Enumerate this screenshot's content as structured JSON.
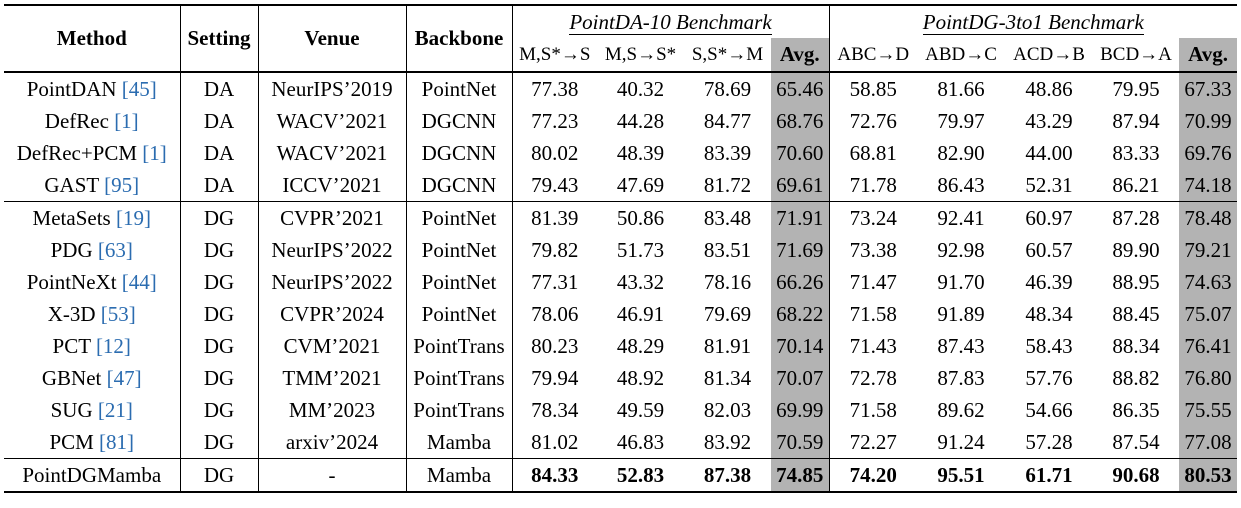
{
  "headers": {
    "method": "Method",
    "setting": "Setting",
    "venue": "Venue",
    "backbone": "Backbone",
    "benchmark1": "PointDA-10 Benchmark",
    "benchmark2": "PointDG-3to1 Benchmark",
    "sub": [
      "M,S*→S",
      "M,S→S*",
      "S,S*→M",
      "Avg.",
      "ABC→D",
      "ABD→C",
      "ACD→B",
      "BCD→A",
      "Avg."
    ]
  },
  "rows": [
    {
      "method": "PointDAN",
      "ref": "[45]",
      "setting": "DA",
      "venue": "NeurIPS’2019",
      "backbone": "PointNet",
      "vals": [
        "77.38",
        "40.32",
        "78.69",
        "65.46",
        "58.85",
        "81.66",
        "48.86",
        "79.95",
        "67.33"
      ]
    },
    {
      "method": "DefRec",
      "ref": "[1]",
      "setting": "DA",
      "venue": "WACV’2021",
      "backbone": "DGCNN",
      "vals": [
        "77.23",
        "44.28",
        "84.77",
        "68.76",
        "72.76",
        "79.97",
        "43.29",
        "87.94",
        "70.99"
      ]
    },
    {
      "method": "DefRec+PCM",
      "ref": "[1]",
      "setting": "DA",
      "venue": "WACV’2021",
      "backbone": "DGCNN",
      "vals": [
        "80.02",
        "48.39",
        "83.39",
        "70.60",
        "68.81",
        "82.90",
        "44.00",
        "83.33",
        "69.76"
      ]
    },
    {
      "method": "GAST",
      "ref": "[95]",
      "setting": "DA",
      "venue": "ICCV’2021",
      "backbone": "DGCNN",
      "vals": [
        "79.43",
        "47.69",
        "81.72",
        "69.61",
        "71.78",
        "86.43",
        "52.31",
        "86.21",
        "74.18"
      ]
    },
    {
      "method": "MetaSets",
      "ref": "[19]",
      "setting": "DG",
      "venue": "CVPR’2021",
      "backbone": "PointNet",
      "vals": [
        "81.39",
        "50.86",
        "83.48",
        "71.91",
        "73.24",
        "92.41",
        "60.97",
        "87.28",
        "78.48"
      ]
    },
    {
      "method": "PDG",
      "ref": "[63]",
      "setting": "DG",
      "venue": "NeurIPS’2022",
      "backbone": "PointNet",
      "vals": [
        "79.82",
        "51.73",
        "83.51",
        "71.69",
        "73.38",
        "92.98",
        "60.57",
        "89.90",
        "79.21"
      ]
    },
    {
      "method": "PointNeXt",
      "ref": "[44]",
      "setting": "DG",
      "venue": "NeurIPS’2022",
      "backbone": "PointNet",
      "vals": [
        "77.31",
        "43.32",
        "78.16",
        "66.26",
        "71.47",
        "91.70",
        "46.39",
        "88.95",
        "74.63"
      ]
    },
    {
      "method": "X-3D",
      "ref": "[53]",
      "setting": "DG",
      "venue": "CVPR’2024",
      "backbone": "PointNet",
      "vals": [
        "78.06",
        "46.91",
        "79.69",
        "68.22",
        "71.58",
        "91.89",
        "48.34",
        "88.45",
        "75.07"
      ]
    },
    {
      "method": "PCT",
      "ref": "[12]",
      "setting": "DG",
      "venue": "CVM’2021",
      "backbone": "PointTrans",
      "vals": [
        "80.23",
        "48.29",
        "81.91",
        "70.14",
        "71.43",
        "87.43",
        "58.43",
        "88.34",
        "76.41"
      ]
    },
    {
      "method": "GBNet",
      "ref": "[47]",
      "setting": "DG",
      "venue": "TMM’2021",
      "backbone": "PointTrans",
      "vals": [
        "79.94",
        "48.92",
        "81.34",
        "70.07",
        "72.78",
        "87.83",
        "57.76",
        "88.82",
        "76.80"
      ]
    },
    {
      "method": "SUG",
      "ref": "[21]",
      "setting": "DG",
      "venue": "MM’2023",
      "backbone": "PointTrans",
      "vals": [
        "78.34",
        "49.59",
        "82.03",
        "69.99",
        "71.58",
        "89.62",
        "54.66",
        "86.35",
        "75.55"
      ]
    },
    {
      "method": "PCM",
      "ref": "[81]",
      "setting": "DG",
      "venue": "arxiv’2024",
      "backbone": "Mamba",
      "vals": [
        "81.02",
        "46.83",
        "83.92",
        "70.59",
        "72.27",
        "91.24",
        "57.28",
        "87.54",
        "77.08"
      ]
    }
  ],
  "ours": {
    "method": "PointDGMamba",
    "setting": "DG",
    "venue": "-",
    "backbone": "Mamba",
    "vals": [
      "84.33",
      "52.83",
      "87.38",
      "74.85",
      "74.20",
      "95.51",
      "61.71",
      "90.68",
      "80.53"
    ]
  },
  "colors": {
    "avg_bg": "#b3b3b3",
    "cite": "#2b6cb0"
  }
}
